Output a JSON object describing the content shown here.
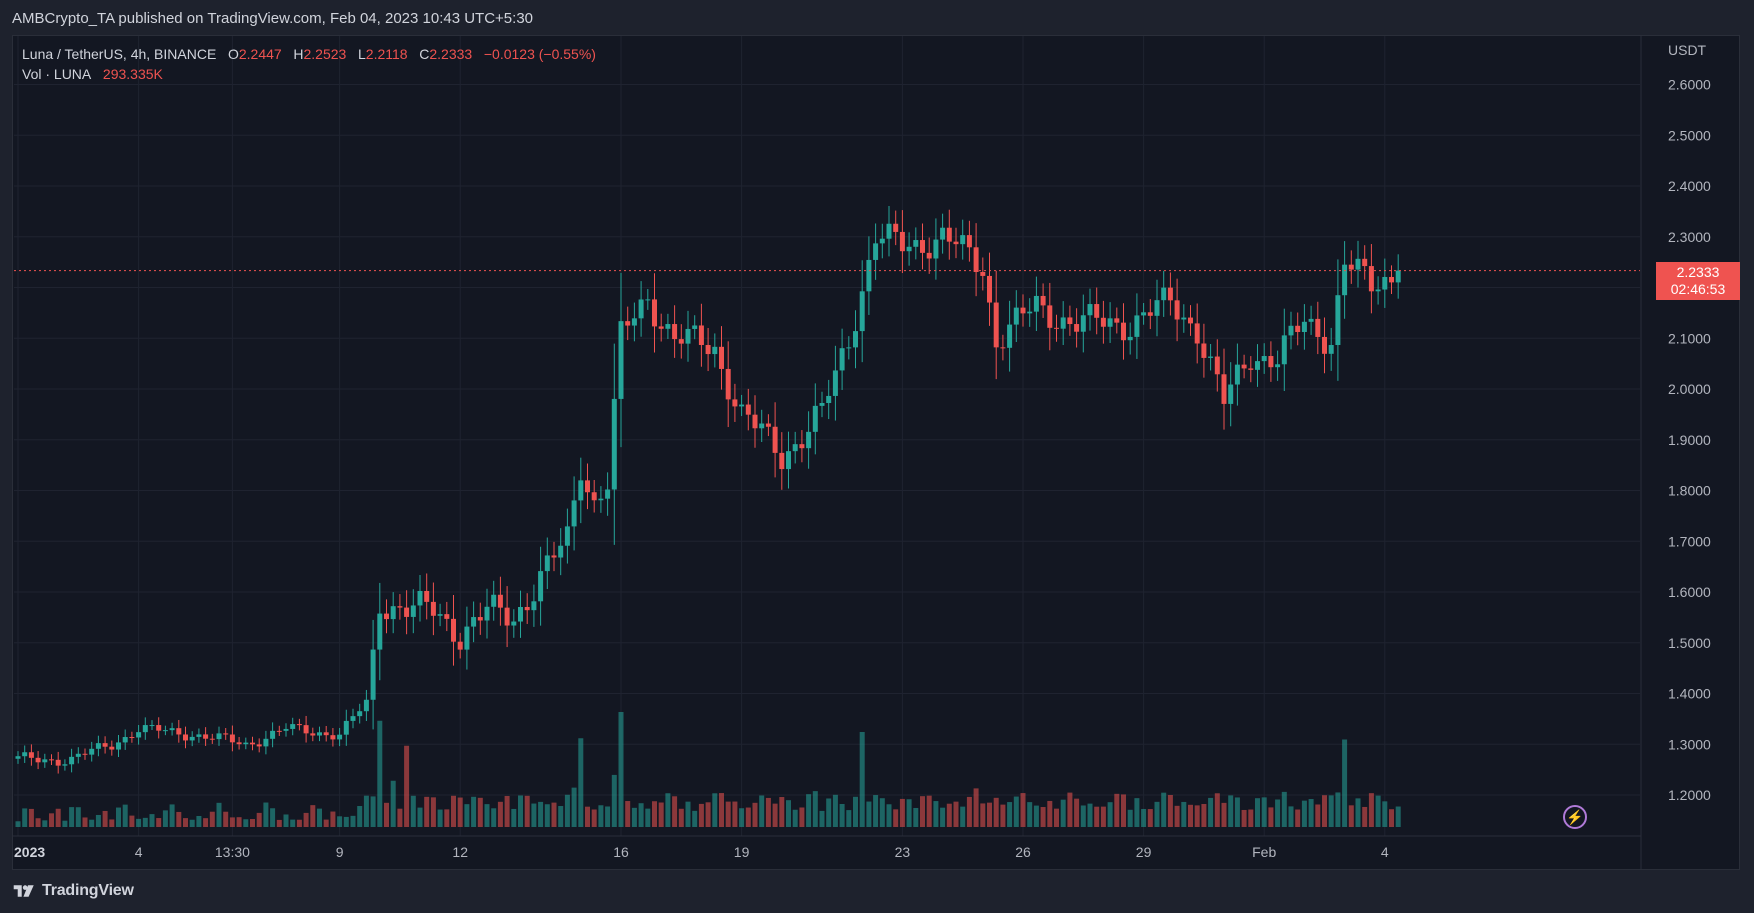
{
  "header": {
    "published_by": "AMBCrypto_TA published on TradingView.com, Feb 04, 2023 10:43 UTC+5:30"
  },
  "legend": {
    "symbol": "Luna / TetherUS, 4h, BINANCE",
    "open_label": "O",
    "open": "2.2447",
    "high_label": "H",
    "high": "2.2523",
    "low_label": "L",
    "low": "2.2118",
    "close_label": "C",
    "close": "2.2333",
    "change": "−0.0123 (−0.55%)",
    "volume_label": "Vol · LUNA",
    "volume": "293.335K"
  },
  "price_tag": {
    "price": "2.2333",
    "countdown": "02:46:53"
  },
  "footer": {
    "brand": "TradingView"
  },
  "colors": {
    "up": "#26a69a",
    "down": "#ef5350",
    "background": "#131722",
    "grid": "#1f2330",
    "text": "#b2b5be"
  },
  "chart_data": {
    "type": "candlestick",
    "currency_label": "USDT",
    "y_ticks": [
      "2.6000",
      "2.5000",
      "2.4000",
      "2.3000",
      "2.2000",
      "2.1000",
      "2.0000",
      "1.9000",
      "1.8000",
      "1.7000",
      "1.6000",
      "1.5000",
      "1.4000",
      "1.3000",
      "1.2000"
    ],
    "y_range": [
      1.13,
      2.62
    ],
    "x_ticks": [
      {
        "label": "2023",
        "idx": 0,
        "bold": true
      },
      {
        "label": "4",
        "idx": 18
      },
      {
        "label": "13:30",
        "idx": 32
      },
      {
        "label": "9",
        "idx": 48
      },
      {
        "label": "12",
        "idx": 66
      },
      {
        "label": "16",
        "idx": 90
      },
      {
        "label": "19",
        "idx": 108
      },
      {
        "label": "23",
        "idx": 132
      },
      {
        "label": "26",
        "idx": 150
      },
      {
        "label": "29",
        "idx": 168
      },
      {
        "label": "Feb",
        "idx": 186
      },
      {
        "label": "4",
        "idx": 204
      }
    ],
    "anchors": [
      [
        0,
        1.27
      ],
      [
        8,
        1.27
      ],
      [
        14,
        1.3
      ],
      [
        18,
        1.33
      ],
      [
        26,
        1.32
      ],
      [
        34,
        1.3
      ],
      [
        40,
        1.33
      ],
      [
        48,
        1.32
      ],
      [
        52,
        1.38
      ],
      [
        54,
        1.58
      ],
      [
        58,
        1.57
      ],
      [
        62,
        1.56
      ],
      [
        66,
        1.52
      ],
      [
        70,
        1.56
      ],
      [
        74,
        1.55
      ],
      [
        78,
        1.63
      ],
      [
        82,
        1.7
      ],
      [
        84,
        1.85
      ],
      [
        86,
        1.78
      ],
      [
        88,
        1.82
      ],
      [
        90,
        2.1
      ],
      [
        94,
        2.18
      ],
      [
        98,
        2.1
      ],
      [
        104,
        2.08
      ],
      [
        108,
        1.95
      ],
      [
        114,
        1.87
      ],
      [
        120,
        1.95
      ],
      [
        124,
        2.1
      ],
      [
        128,
        2.3
      ],
      [
        132,
        2.28
      ],
      [
        138,
        2.3
      ],
      [
        144,
        2.24
      ],
      [
        146,
        2.1
      ],
      [
        152,
        2.16
      ],
      [
        158,
        2.13
      ],
      [
        166,
        2.13
      ],
      [
        172,
        2.17
      ],
      [
        176,
        2.12
      ],
      [
        180,
        1.97
      ],
      [
        184,
        2.07
      ],
      [
        188,
        2.06
      ],
      [
        192,
        2.13
      ],
      [
        196,
        2.1
      ],
      [
        198,
        2.25
      ],
      [
        202,
        2.2
      ],
      [
        206,
        2.2333
      ]
    ],
    "volume_spikes": [
      [
        54,
        0.85
      ],
      [
        56,
        0.37
      ],
      [
        58,
        0.65
      ],
      [
        84,
        0.71
      ],
      [
        90,
        0.92
      ],
      [
        126,
        0.76
      ],
      [
        198,
        0.7
      ]
    ],
    "last_close": 2.2333
  }
}
